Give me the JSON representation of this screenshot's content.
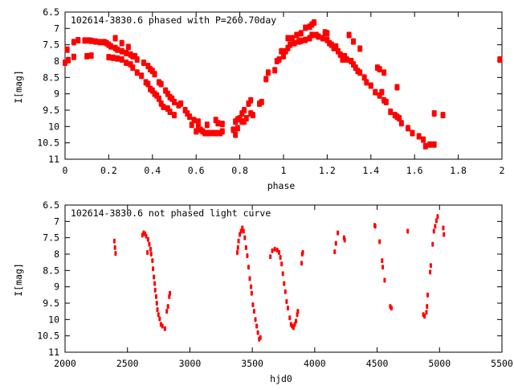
{
  "chart_data": [
    {
      "type": "scatter",
      "title": "102614-3830.6 phased with P=260.70day",
      "xlabel": "phase",
      "ylabel": "I[mag]",
      "xlim": [
        0,
        2
      ],
      "ylim": [
        11,
        6.5
      ],
      "y_inverted": true,
      "xticks": [
        "0",
        "0.2",
        "0.4",
        "0.6",
        "0.8",
        "1",
        "1.2",
        "1.4",
        "1.6",
        "1.8",
        "2"
      ],
      "xtick_values": [
        0,
        0.2,
        0.4,
        0.6,
        0.8,
        1,
        1.2,
        1.4,
        1.6,
        1.8,
        2
      ],
      "yticks": [
        "6.5",
        "7",
        "7.5",
        "8",
        "8.5",
        "9",
        "9.5",
        "10",
        "10.5",
        "11"
      ],
      "ytick_values": [
        6.5,
        7,
        7.5,
        8,
        8.5,
        9,
        9.5,
        10,
        10.5,
        11
      ],
      "grid": false,
      "color": "#ff0000",
      "points": [
        [
          0,
          8.05
        ],
        [
          0.01,
          7.65
        ],
        [
          0.015,
          7.97
        ],
        [
          0.04,
          7.42
        ],
        [
          0.04,
          7.87
        ],
        [
          0.06,
          7.36
        ],
        [
          0.09,
          7.37
        ],
        [
          0.1,
          7.85
        ],
        [
          0.11,
          7.37
        ],
        [
          0.12,
          7.38
        ],
        [
          0.12,
          7.83
        ],
        [
          0.14,
          7.4
        ],
        [
          0.16,
          7.42
        ],
        [
          0.18,
          7.42
        ],
        [
          0.19,
          7.45
        ],
        [
          0.2,
          7.5
        ],
        [
          0.2,
          7.88
        ],
        [
          0.21,
          7.55
        ],
        [
          0.22,
          7.9
        ],
        [
          0.23,
          7.6
        ],
        [
          0.23,
          7.3
        ],
        [
          0.24,
          7.65
        ],
        [
          0.24,
          7.92
        ],
        [
          0.26,
          7.45
        ],
        [
          0.26,
          7.7
        ],
        [
          0.26,
          7.95
        ],
        [
          0.28,
          7.75
        ],
        [
          0.28,
          8.05
        ],
        [
          0.29,
          7.57
        ],
        [
          0.3,
          7.8
        ],
        [
          0.3,
          8.1
        ],
        [
          0.31,
          7.85
        ],
        [
          0.31,
          8.2
        ],
        [
          0.32,
          7.85
        ],
        [
          0.33,
          7.95
        ],
        [
          0.33,
          8.35
        ],
        [
          0.35,
          8.45
        ],
        [
          0.36,
          8.05
        ],
        [
          0.37,
          8.65
        ],
        [
          0.38,
          8.15
        ],
        [
          0.38,
          8.7
        ],
        [
          0.39,
          8.25
        ],
        [
          0.39,
          8.85
        ],
        [
          0.4,
          8.3
        ],
        [
          0.4,
          8.9
        ],
        [
          0.41,
          8.4
        ],
        [
          0.41,
          9.0
        ],
        [
          0.42,
          9.05
        ],
        [
          0.43,
          8.65
        ],
        [
          0.43,
          9.15
        ],
        [
          0.44,
          8.7
        ],
        [
          0.44,
          9.3
        ],
        [
          0.45,
          9.4
        ],
        [
          0.46,
          8.9
        ],
        [
          0.47,
          9.0
        ],
        [
          0.47,
          9.45
        ],
        [
          0.48,
          9.1
        ],
        [
          0.48,
          9.55
        ],
        [
          0.49,
          9.15
        ],
        [
          0.5,
          9.65
        ],
        [
          0.5,
          9.25
        ],
        [
          0.52,
          9.35
        ],
        [
          0.53,
          9.3
        ],
        [
          0.55,
          9.5
        ],
        [
          0.56,
          9.6
        ],
        [
          0.57,
          9.7
        ],
        [
          0.58,
          9.95
        ],
        [
          0.59,
          9.8
        ],
        [
          0.6,
          10.15
        ],
        [
          0.61,
          9.85
        ],
        [
          0.61,
          10.0
        ],
        [
          0.62,
          10.1
        ],
        [
          0.63,
          10.15
        ],
        [
          0.64,
          10.2
        ],
        [
          0.65,
          9.95
        ],
        [
          0.66,
          10.2
        ],
        [
          0.68,
          10.2
        ],
        [
          0.69,
          9.8
        ],
        [
          0.69,
          10.2
        ],
        [
          0.7,
          9.9
        ],
        [
          0.71,
          10.2
        ],
        [
          0.72,
          9.92
        ],
        [
          0.72,
          10.15
        ],
        [
          0.77,
          10.1
        ],
        [
          0.78,
          10.25
        ],
        [
          0.78,
          9.85
        ],
        [
          0.79,
          10.05
        ],
        [
          0.79,
          9.78
        ],
        [
          0.8,
          9.75
        ],
        [
          0.81,
          9.85
        ],
        [
          0.81,
          9.6
        ],
        [
          0.82,
          9.5
        ],
        [
          0.82,
          9.85
        ],
        [
          0.83,
          9.75
        ],
        [
          0.84,
          9.3
        ],
        [
          0.85,
          9.6
        ],
        [
          0.85,
          9.2
        ],
        [
          0.86,
          9.65
        ],
        [
          0.89,
          9.3
        ],
        [
          0.9,
          9.25
        ],
        [
          0.92,
          8.55
        ],
        [
          0.93,
          8.35
        ],
        [
          0.96,
          8.28
        ],
        [
          0.97,
          8.0
        ],
        [
          0.98,
          7.95
        ],
        [
          0.99,
          7.7
        ],
        [
          1.0,
          7.85
        ],
        [
          1.01,
          7.7
        ],
        [
          1.02,
          7.6
        ],
        [
          1.02,
          7.3
        ],
        [
          1.03,
          7.5
        ],
        [
          1.04,
          7.3
        ],
        [
          1.05,
          7.45
        ],
        [
          1.06,
          7.2
        ],
        [
          1.07,
          7.4
        ],
        [
          1.08,
          7.15
        ],
        [
          1.08,
          7.38
        ],
        [
          1.1,
          6.98
        ],
        [
          1.1,
          7.35
        ],
        [
          1.12,
          7.3
        ],
        [
          1.12,
          6.95
        ],
        [
          1.13,
          6.88
        ],
        [
          1.13,
          7.2
        ],
        [
          1.14,
          6.82
        ],
        [
          1.15,
          7.2
        ],
        [
          1.16,
          7.25
        ],
        [
          1.18,
          7.3
        ],
        [
          1.19,
          7.12
        ],
        [
          1.2,
          7.35
        ],
        [
          1.2,
          7.15
        ],
        [
          1.21,
          7.45
        ],
        [
          1.22,
          7.5
        ],
        [
          1.23,
          7.6
        ],
        [
          1.24,
          7.55
        ],
        [
          1.25,
          7.7
        ],
        [
          1.26,
          7.8
        ],
        [
          1.27,
          7.95
        ],
        [
          1.28,
          7.85
        ],
        [
          1.29,
          7.95
        ],
        [
          1.3,
          7.2
        ],
        [
          1.31,
          8.0
        ],
        [
          1.32,
          7.4
        ],
        [
          1.32,
          8.1
        ],
        [
          1.33,
          8.2
        ],
        [
          1.34,
          8.3
        ],
        [
          1.35,
          7.62
        ],
        [
          1.35,
          8.35
        ],
        [
          1.37,
          8.5
        ],
        [
          1.38,
          8.65
        ],
        [
          1.4,
          8.75
        ],
        [
          1.42,
          8.95
        ],
        [
          1.43,
          8.2
        ],
        [
          1.44,
          9.05
        ],
        [
          1.44,
          8.25
        ],
        [
          1.45,
          8.95
        ],
        [
          1.46,
          8.35
        ],
        [
          1.46,
          9.2
        ],
        [
          1.47,
          9.25
        ],
        [
          1.49,
          9.55
        ],
        [
          1.51,
          9.65
        ],
        [
          1.52,
          8.8
        ],
        [
          1.52,
          9.7
        ],
        [
          1.53,
          9.75
        ],
        [
          1.54,
          9.9
        ],
        [
          1.57,
          10.05
        ],
        [
          1.59,
          10.2
        ],
        [
          1.62,
          10.3
        ],
        [
          1.64,
          10.4
        ],
        [
          1.65,
          10.6
        ],
        [
          1.67,
          10.55
        ],
        [
          1.69,
          10.55
        ],
        [
          1.69,
          9.6
        ],
        [
          1.73,
          9.65
        ],
        [
          1.99,
          7.95
        ]
      ]
    },
    {
      "type": "scatter",
      "title": "102614-3830.6 not phased light curve",
      "xlabel": "hjd0",
      "ylabel": "I[mag]",
      "xlim": [
        2000,
        5500
      ],
      "ylim": [
        11,
        6.5
      ],
      "y_inverted": true,
      "xticks": [
        "2000",
        "2500",
        "3000",
        "3500",
        "4000",
        "4500",
        "5000",
        "5500"
      ],
      "xtick_values": [
        2000,
        2500,
        3000,
        3500,
        4000,
        4500,
        5000,
        5500
      ],
      "yticks": [
        "6.5",
        "7",
        "7.5",
        "8",
        "8.5",
        "9",
        "9.5",
        "10",
        "10.5",
        "11"
      ],
      "ytick_values": [
        6.5,
        7,
        7.5,
        8,
        8.5,
        9,
        9.5,
        10,
        10.5,
        11
      ],
      "grid": false,
      "color": "#ff0000",
      "points": [
        [
          2395,
          7.6
        ],
        [
          2400,
          7.8
        ],
        [
          2405,
          7.98
        ],
        [
          2620,
          7.42
        ],
        [
          2630,
          7.35
        ],
        [
          2640,
          7.38
        ],
        [
          2650,
          7.45
        ],
        [
          2660,
          7.95
        ],
        [
          2665,
          7.55
        ],
        [
          2675,
          7.7
        ],
        [
          2685,
          7.85
        ],
        [
          2690,
          8.0
        ],
        [
          2700,
          8.2
        ],
        [
          2705,
          8.45
        ],
        [
          2712,
          8.7
        ],
        [
          2718,
          8.9
        ],
        [
          2722,
          9.1
        ],
        [
          2730,
          9.3
        ],
        [
          2735,
          9.5
        ],
        [
          2740,
          9.7
        ],
        [
          2748,
          9.85
        ],
        [
          2758,
          9.98
        ],
        [
          2768,
          10.15
        ],
        [
          2780,
          10.2
        ],
        [
          2800,
          10.28
        ],
        [
          2815,
          9.75
        ],
        [
          2825,
          9.6
        ],
        [
          2835,
          9.3
        ],
        [
          2840,
          9.2
        ],
        [
          3380,
          7.95
        ],
        [
          3385,
          7.8
        ],
        [
          3390,
          7.6
        ],
        [
          3400,
          7.4
        ],
        [
          3410,
          7.3
        ],
        [
          3420,
          7.2
        ],
        [
          3430,
          7.3
        ],
        [
          3440,
          7.5
        ],
        [
          3450,
          7.8
        ],
        [
          3460,
          8.05
        ],
        [
          3470,
          8.4
        ],
        [
          3480,
          8.75
        ],
        [
          3490,
          9.0
        ],
        [
          3495,
          9.2
        ],
        [
          3505,
          9.55
        ],
        [
          3515,
          9.75
        ],
        [
          3525,
          10.0
        ],
        [
          3535,
          10.2
        ],
        [
          3545,
          10.4
        ],
        [
          3555,
          10.6
        ],
        [
          3565,
          10.55
        ],
        [
          3645,
          8.08
        ],
        [
          3660,
          7.9
        ],
        [
          3680,
          7.85
        ],
        [
          3700,
          7.88
        ],
        [
          3715,
          7.95
        ],
        [
          3725,
          8.1
        ],
        [
          3735,
          8.3
        ],
        [
          3745,
          8.6
        ],
        [
          3755,
          8.9
        ],
        [
          3765,
          9.15
        ],
        [
          3775,
          9.45
        ],
        [
          3785,
          9.65
        ],
        [
          3800,
          9.95
        ],
        [
          3810,
          10.15
        ],
        [
          3820,
          10.2
        ],
        [
          3830,
          10.25
        ],
        [
          3840,
          10.15
        ],
        [
          3850,
          10.05
        ],
        [
          3860,
          9.85
        ],
        [
          3865,
          9.75
        ],
        [
          3895,
          8.28
        ],
        [
          3900,
          8.0
        ],
        [
          3905,
          7.95
        ],
        [
          4160,
          7.93
        ],
        [
          4170,
          7.67
        ],
        [
          4185,
          7.35
        ],
        [
          4235,
          7.5
        ],
        [
          4240,
          7.57
        ],
        [
          4480,
          7.12
        ],
        [
          4485,
          7.15
        ],
        [
          4520,
          7.62
        ],
        [
          4540,
          8.2
        ],
        [
          4545,
          8.4
        ],
        [
          4560,
          8.8
        ],
        [
          4605,
          9.6
        ],
        [
          4615,
          9.65
        ],
        [
          4745,
          7.3
        ],
        [
          4870,
          9.85
        ],
        [
          4880,
          9.9
        ],
        [
          4895,
          9.78
        ],
        [
          4900,
          9.6
        ],
        [
          4905,
          9.25
        ],
        [
          4925,
          8.55
        ],
        [
          4930,
          8.35
        ],
        [
          4945,
          7.7
        ],
        [
          4955,
          7.3
        ],
        [
          4965,
          7.15
        ],
        [
          4975,
          6.98
        ],
        [
          4985,
          6.85
        ],
        [
          5030,
          7.2
        ],
        [
          5035,
          7.4
        ]
      ]
    }
  ]
}
